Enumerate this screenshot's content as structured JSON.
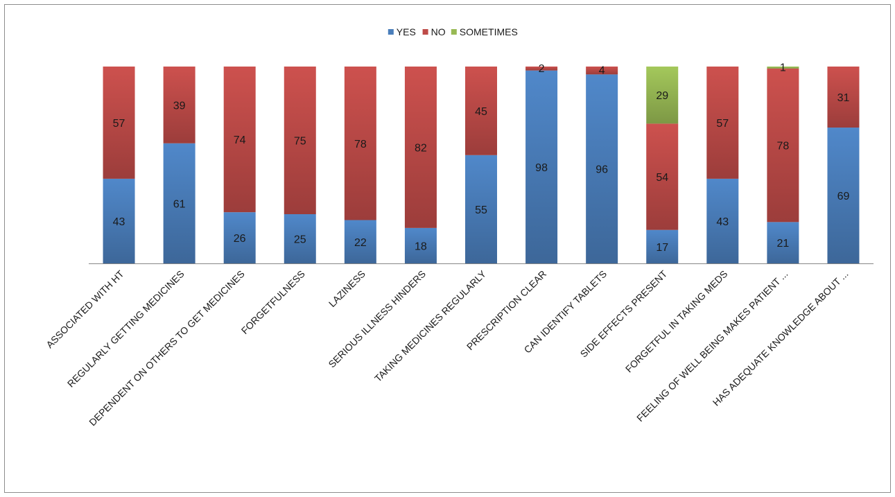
{
  "chart_data": {
    "type": "bar",
    "stacked": true,
    "title": "",
    "xlabel": "",
    "ylabel": "",
    "legend_position": "top",
    "grid": false,
    "ylim": [
      0,
      100
    ],
    "categories": [
      "ASSOCIATED WITH HT",
      "REGULARLY GETTING MEDICINES",
      "DEPENDENT ON OTHERS TO GET MEDICINES",
      "FORGETFULNESS",
      "LAZINESS",
      "SERIOUS ILLNESS HINDERS",
      "TAKING MEDICINES REGULARLY",
      "PRESCRIPTION CLEAR",
      "CAN IDENTIFY TABLETS",
      "SIDE EFFECTS PRESENT",
      "FORGETFUL IN TAKING MEDS",
      "FEELING OF WELL BEING MAKES PATIENT ...",
      "HAS ADEQUATE KNOWLEDGE ABOUT ..."
    ],
    "series": [
      {
        "name": "YES",
        "color": "#4a7ebb",
        "values": [
          43,
          61,
          26,
          25,
          22,
          18,
          55,
          98,
          96,
          17,
          43,
          21,
          69
        ]
      },
      {
        "name": "NO",
        "color": "#be4b48",
        "values": [
          57,
          39,
          74,
          75,
          78,
          82,
          45,
          2,
          4,
          54,
          57,
          78,
          31
        ]
      },
      {
        "name": "SOMETIMES",
        "color": "#98b954",
        "values": [
          0,
          0,
          0,
          0,
          0,
          0,
          0,
          0,
          0,
          29,
          0,
          1,
          0
        ]
      }
    ]
  }
}
